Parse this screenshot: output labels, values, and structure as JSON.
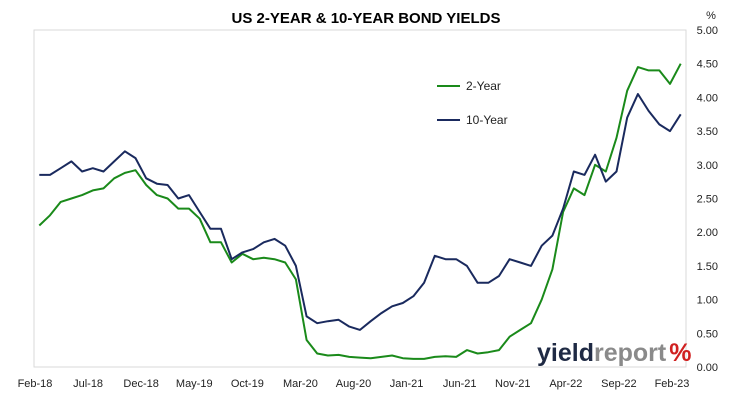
{
  "chart_data": {
    "type": "line",
    "title": "US 2-YEAR & 10-YEAR BOND YIELDS",
    "y_unit": "%",
    "ylim": [
      0,
      5
    ],
    "y_ticks": [
      "0.00",
      "0.50",
      "1.00",
      "1.50",
      "2.00",
      "2.50",
      "3.00",
      "3.50",
      "4.00",
      "4.50",
      "5.00"
    ],
    "x_ticks": [
      "Feb-18",
      "Jul-18",
      "Dec-18",
      "May-19",
      "Oct-19",
      "Mar-20",
      "Aug-20",
      "Jan-21",
      "Jun-21",
      "Nov-21",
      "Apr-22",
      "Sep-22",
      "Feb-23"
    ],
    "xlim": [
      "2018-02",
      "2023-03"
    ],
    "grid": false,
    "legend_position": "top-right",
    "series": [
      {
        "name": "2-Year",
        "color": "#1a8a1a",
        "x": [
          "2018-02",
          "2018-03",
          "2018-04",
          "2018-05",
          "2018-06",
          "2018-07",
          "2018-08",
          "2018-09",
          "2018-10",
          "2018-11",
          "2018-12",
          "2019-01",
          "2019-02",
          "2019-03",
          "2019-04",
          "2019-05",
          "2019-06",
          "2019-07",
          "2019-08",
          "2019-09",
          "2019-10",
          "2019-11",
          "2019-12",
          "2020-01",
          "2020-02",
          "2020-03",
          "2020-04",
          "2020-05",
          "2020-06",
          "2020-07",
          "2020-08",
          "2020-09",
          "2020-10",
          "2020-11",
          "2020-12",
          "2021-01",
          "2021-02",
          "2021-03",
          "2021-04",
          "2021-05",
          "2021-06",
          "2021-07",
          "2021-08",
          "2021-09",
          "2021-10",
          "2021-11",
          "2021-12",
          "2022-01",
          "2022-02",
          "2022-03",
          "2022-04",
          "2022-05",
          "2022-06",
          "2022-07",
          "2022-08",
          "2022-09",
          "2022-10",
          "2022-11",
          "2022-12",
          "2023-01",
          "2023-02"
        ],
        "values": [
          2.1,
          2.25,
          2.45,
          2.5,
          2.55,
          2.62,
          2.65,
          2.8,
          2.88,
          2.92,
          2.7,
          2.55,
          2.5,
          2.35,
          2.35,
          2.2,
          1.85,
          1.85,
          1.55,
          1.68,
          1.6,
          1.62,
          1.6,
          1.55,
          1.3,
          0.4,
          0.2,
          0.17,
          0.18,
          0.15,
          0.14,
          0.13,
          0.15,
          0.17,
          0.13,
          0.12,
          0.12,
          0.15,
          0.16,
          0.15,
          0.25,
          0.2,
          0.22,
          0.25,
          0.45,
          0.55,
          0.65,
          1.0,
          1.45,
          2.3,
          2.65,
          2.55,
          3.0,
          2.9,
          3.4,
          4.1,
          4.45,
          4.4,
          4.4,
          4.2,
          4.5
        ]
      },
      {
        "name": "10-Year",
        "color": "#1a2a5e",
        "x": [
          "2018-02",
          "2018-03",
          "2018-04",
          "2018-05",
          "2018-06",
          "2018-07",
          "2018-08",
          "2018-09",
          "2018-10",
          "2018-11",
          "2018-12",
          "2019-01",
          "2019-02",
          "2019-03",
          "2019-04",
          "2019-05",
          "2019-06",
          "2019-07",
          "2019-08",
          "2019-09",
          "2019-10",
          "2019-11",
          "2019-12",
          "2020-01",
          "2020-02",
          "2020-03",
          "2020-04",
          "2020-05",
          "2020-06",
          "2020-07",
          "2020-08",
          "2020-09",
          "2020-10",
          "2020-11",
          "2020-12",
          "2021-01",
          "2021-02",
          "2021-03",
          "2021-04",
          "2021-05",
          "2021-06",
          "2021-07",
          "2021-08",
          "2021-09",
          "2021-10",
          "2021-11",
          "2021-12",
          "2022-01",
          "2022-02",
          "2022-03",
          "2022-04",
          "2022-05",
          "2022-06",
          "2022-07",
          "2022-08",
          "2022-09",
          "2022-10",
          "2022-11",
          "2022-12",
          "2023-01",
          "2023-02"
        ],
        "values": [
          2.85,
          2.85,
          2.95,
          3.05,
          2.9,
          2.95,
          2.9,
          3.05,
          3.2,
          3.1,
          2.8,
          2.72,
          2.7,
          2.5,
          2.55,
          2.3,
          2.05,
          2.05,
          1.6,
          1.7,
          1.75,
          1.85,
          1.9,
          1.8,
          1.5,
          0.75,
          0.65,
          0.68,
          0.7,
          0.6,
          0.55,
          0.68,
          0.8,
          0.9,
          0.95,
          1.05,
          1.25,
          1.65,
          1.6,
          1.6,
          1.5,
          1.25,
          1.25,
          1.35,
          1.6,
          1.55,
          1.5,
          1.8,
          1.95,
          2.35,
          2.9,
          2.85,
          3.15,
          2.75,
          2.9,
          3.7,
          4.05,
          3.8,
          3.6,
          3.5,
          3.75
        ]
      }
    ]
  },
  "watermark": {
    "part1": "yield",
    "part2": "report",
    "part3": "%"
  }
}
